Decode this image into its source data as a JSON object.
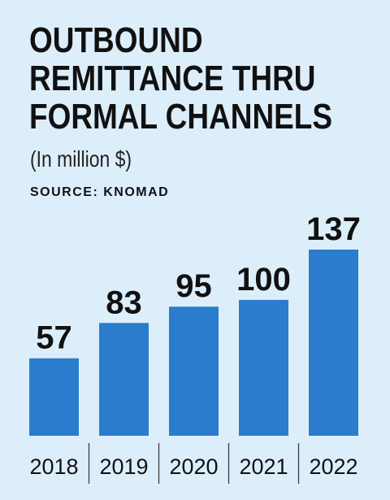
{
  "title_lines": [
    "OUTBOUND",
    "REMITTANCE THRU",
    "FORMAL CHANNELS"
  ],
  "subtitle": "(In million $)",
  "source": "SOURCE: KNOMAD",
  "colors": {
    "background": "#ddeefb",
    "bar": "#2b7ccc",
    "text": "#111111"
  },
  "chart_data": {
    "type": "bar",
    "title": "OUTBOUND REMITTANCE THRU FORMAL CHANNELS",
    "subtitle": "(In million $)",
    "categories": [
      "2018",
      "2019",
      "2020",
      "2021",
      "2022"
    ],
    "values": [
      57,
      83,
      95,
      100,
      137
    ],
    "xlabel": "",
    "ylabel": "",
    "ylim": [
      0,
      137
    ],
    "grid": false,
    "legend": "none"
  }
}
